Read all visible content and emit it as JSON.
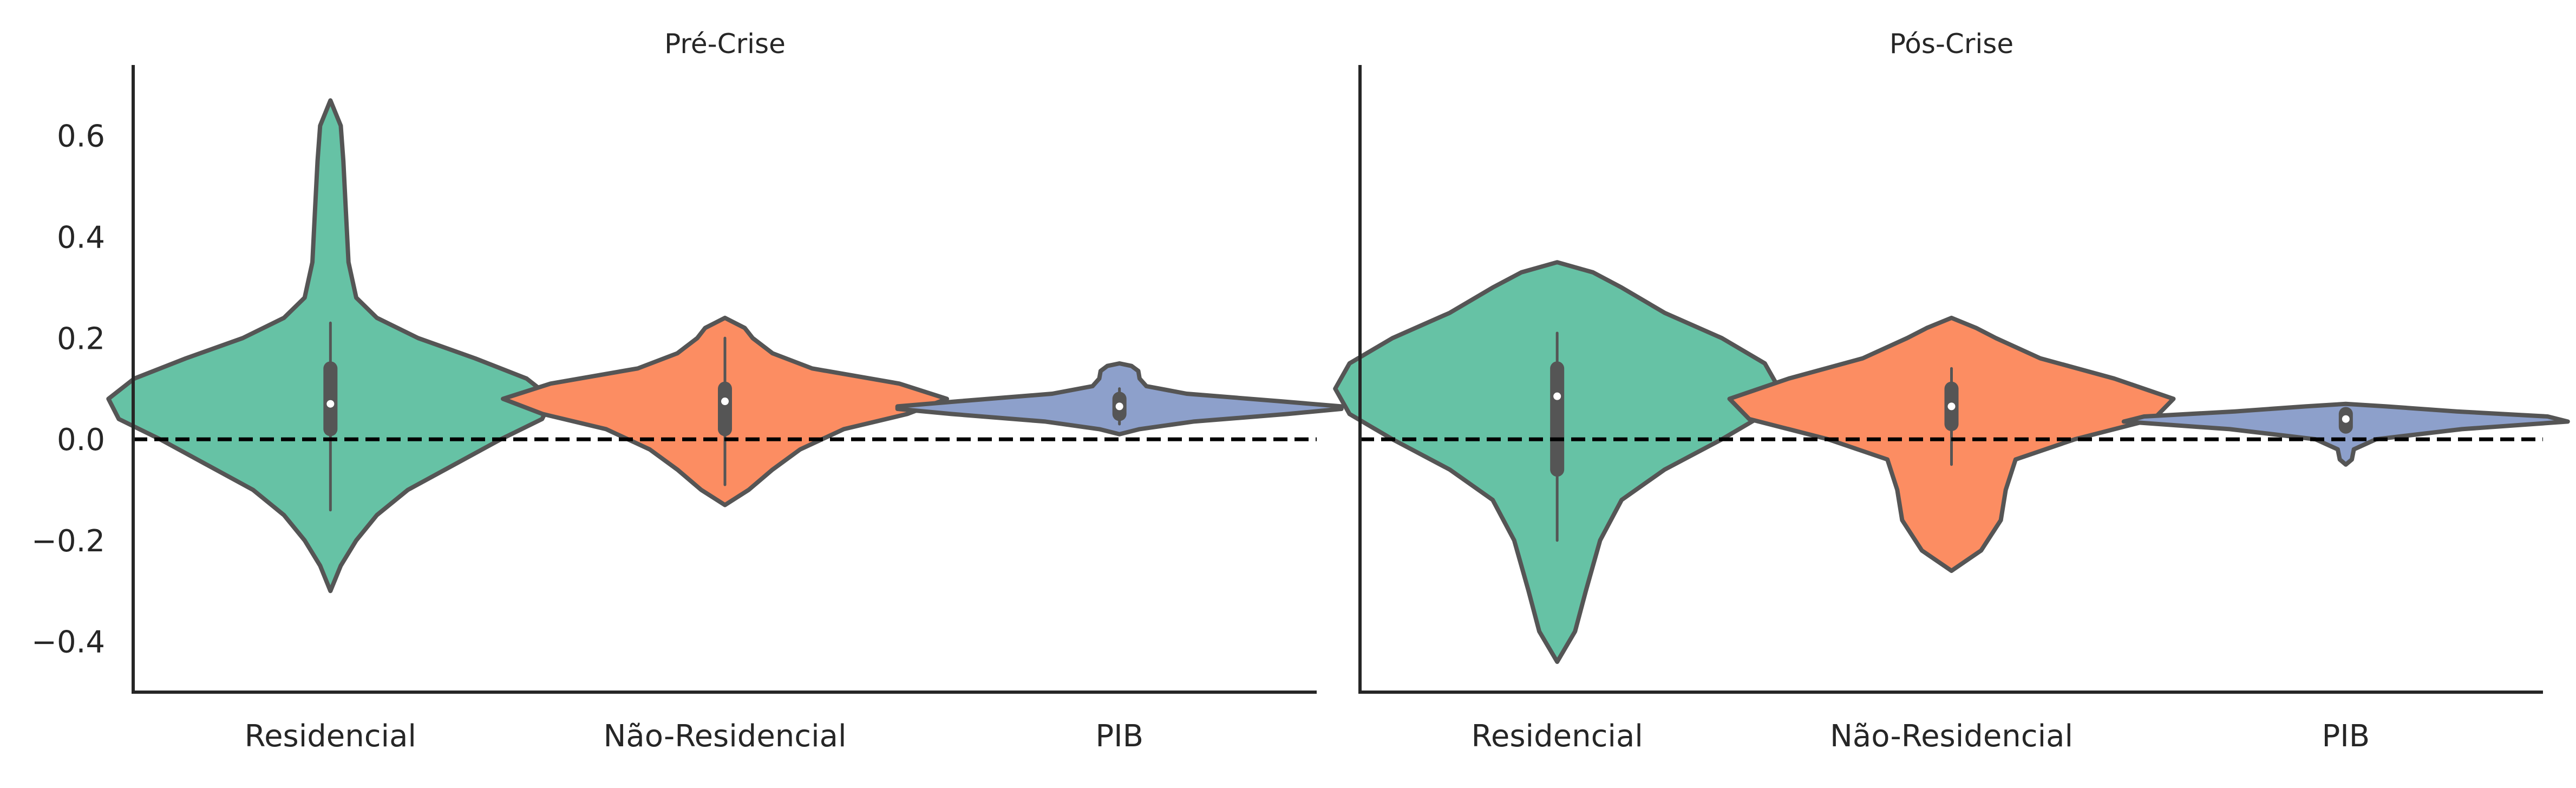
{
  "chart_data": [
    {
      "type": "violin",
      "title": "Pré-Crise",
      "xlabel": "",
      "ylabel": "",
      "categories": [
        "Residencial",
        "Não-Residencial",
        "PIB"
      ],
      "colors": [
        "#66c2a5",
        "#fc8d62",
        "#8da0cb"
      ],
      "ylim": [
        -0.5,
        0.74
      ],
      "yticks": [
        -0.4,
        -0.2,
        0.0,
        0.2,
        0.4,
        0.6
      ],
      "ytick_labels": [
        "−0.4",
        "−0.2",
        "0.0",
        "0.2",
        "0.4",
        "0.6"
      ],
      "reference_line": {
        "y": 0.0,
        "style": "dashed"
      },
      "grid": false,
      "violins": [
        {
          "category": "Residencial",
          "min": -0.3,
          "max": 0.67,
          "whisker_low": -0.14,
          "whisker_high": 0.23,
          "q1": 0.02,
          "median": 0.07,
          "q3": 0.14,
          "profile": [
            [
              -0.3,
              0
            ],
            [
              -0.25,
              0.004
            ],
            [
              -0.2,
              0.01
            ],
            [
              -0.15,
              0.018
            ],
            [
              -0.1,
              0.03
            ],
            [
              -0.05,
              0.048
            ],
            [
              0.0,
              0.066
            ],
            [
              0.04,
              0.082
            ],
            [
              0.08,
              0.086
            ],
            [
              0.12,
              0.076
            ],
            [
              0.16,
              0.056
            ],
            [
              0.2,
              0.034
            ],
            [
              0.24,
              0.018
            ],
            [
              0.28,
              0.01
            ],
            [
              0.35,
              0.007
            ],
            [
              0.45,
              0.006
            ],
            [
              0.55,
              0.005
            ],
            [
              0.62,
              0.004
            ],
            [
              0.67,
              0
            ]
          ]
        },
        {
          "category": "Não-Residencial",
          "min": -0.13,
          "max": 0.24,
          "whisker_low": -0.09,
          "whisker_high": 0.2,
          "q1": 0.02,
          "median": 0.075,
          "q3": 0.1,
          "profile": [
            [
              -0.13,
              0
            ],
            [
              -0.1,
              0.012
            ],
            [
              -0.06,
              0.024
            ],
            [
              -0.02,
              0.038
            ],
            [
              0.02,
              0.06
            ],
            [
              0.05,
              0.092
            ],
            [
              0.08,
              0.112
            ],
            [
              0.11,
              0.088
            ],
            [
              0.14,
              0.044
            ],
            [
              0.17,
              0.024
            ],
            [
              0.2,
              0.014
            ],
            [
              0.22,
              0.01
            ],
            [
              0.24,
              0
            ]
          ]
        },
        {
          "category": "PIB",
          "min": 0.01,
          "max": 0.15,
          "whisker_low": 0.03,
          "whisker_high": 0.1,
          "q1": 0.05,
          "median": 0.065,
          "q3": 0.08,
          "profile": [
            [
              0.01,
              0
            ],
            [
              0.02,
              0.03
            ],
            [
              0.035,
              0.11
            ],
            [
              0.05,
              0.25
            ],
            [
              0.06,
              0.33
            ],
            [
              0.065,
              0.33
            ],
            [
              0.075,
              0.24
            ],
            [
              0.09,
              0.1
            ],
            [
              0.105,
              0.04
            ],
            [
              0.12,
              0.03
            ],
            [
              0.135,
              0.028
            ],
            [
              0.145,
              0.018
            ],
            [
              0.15,
              0
            ]
          ]
        }
      ]
    },
    {
      "type": "violin",
      "title": "Pós-Crise",
      "xlabel": "",
      "ylabel": "",
      "categories": [
        "Residencial",
        "Não-Residencial",
        "PIB"
      ],
      "colors": [
        "#66c2a5",
        "#fc8d62",
        "#8da0cb"
      ],
      "ylim": [
        -0.5,
        0.74
      ],
      "reference_line": {
        "y": 0.0,
        "style": "dashed"
      },
      "grid": false,
      "violins": [
        {
          "category": "Residencial",
          "min": -0.44,
          "max": 0.35,
          "whisker_low": -0.2,
          "whisker_high": 0.21,
          "q1": -0.06,
          "median": 0.085,
          "q3": 0.14,
          "profile": [
            [
              -0.44,
              0
            ],
            [
              -0.38,
              0.005
            ],
            [
              -0.3,
              0.008
            ],
            [
              -0.2,
              0.012
            ],
            [
              -0.12,
              0.018
            ],
            [
              -0.06,
              0.03
            ],
            [
              0.0,
              0.046
            ],
            [
              0.05,
              0.058
            ],
            [
              0.1,
              0.062
            ],
            [
              0.15,
              0.058
            ],
            [
              0.2,
              0.046
            ],
            [
              0.25,
              0.03
            ],
            [
              0.3,
              0.018
            ],
            [
              0.33,
              0.01
            ],
            [
              0.35,
              0
            ]
          ]
        },
        {
          "category": "Não-Residencial",
          "min": -0.26,
          "max": 0.24,
          "whisker_low": -0.05,
          "whisker_high": 0.14,
          "q1": 0.03,
          "median": 0.065,
          "q3": 0.1,
          "profile": [
            [
              -0.26,
              0
            ],
            [
              -0.22,
              0.012
            ],
            [
              -0.16,
              0.02
            ],
            [
              -0.1,
              0.022
            ],
            [
              -0.04,
              0.026
            ],
            [
              0.0,
              0.05
            ],
            [
              0.04,
              0.082
            ],
            [
              0.08,
              0.09
            ],
            [
              0.12,
              0.066
            ],
            [
              0.16,
              0.036
            ],
            [
              0.2,
              0.018
            ],
            [
              0.22,
              0.01
            ],
            [
              0.24,
              0
            ]
          ]
        },
        {
          "category": "PIB",
          "min": -0.05,
          "max": 0.07,
          "whisker_low": 0.02,
          "whisker_high": 0.06,
          "q1": 0.025,
          "median": 0.04,
          "q3": 0.05,
          "profile": [
            [
              -0.05,
              0
            ],
            [
              -0.04,
              0.012
            ],
            [
              -0.02,
              0.016
            ],
            [
              0.0,
              0.06
            ],
            [
              0.02,
              0.23
            ],
            [
              0.035,
              0.44
            ],
            [
              0.045,
              0.4
            ],
            [
              0.055,
              0.22
            ],
            [
              0.065,
              0.08
            ],
            [
              0.07,
              0
            ]
          ]
        }
      ]
    }
  ]
}
